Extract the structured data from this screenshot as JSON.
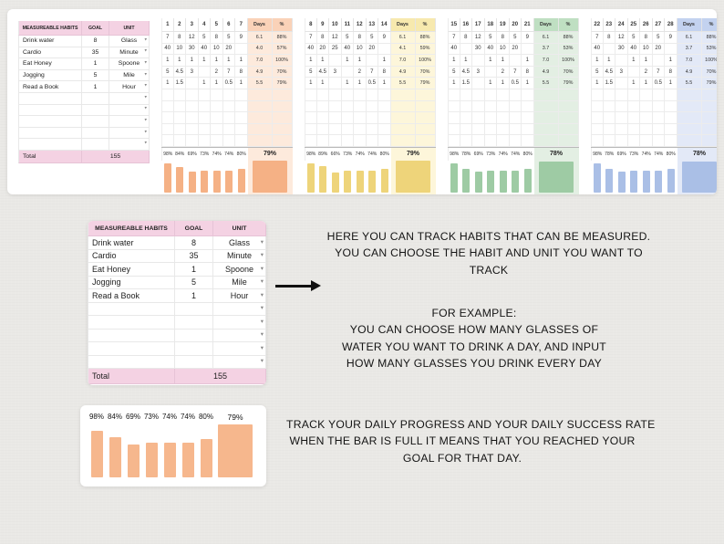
{
  "page": {
    "background": "#eae9e6"
  },
  "habits_table": {
    "headers": [
      "MEASUREABLE HABITS",
      "GOAL",
      "UNIT"
    ],
    "rows": [
      {
        "name": "Drink water",
        "goal": "8",
        "unit": "Glass"
      },
      {
        "name": "Cardio",
        "goal": "35",
        "unit": "Minute"
      },
      {
        "name": "Eat Honey",
        "goal": "1",
        "unit": "Spoone"
      },
      {
        "name": "Jogging",
        "goal": "5",
        "unit": "Mile"
      },
      {
        "name": "Read a Book",
        "goal": "1",
        "unit": "Hour"
      }
    ],
    "empty_row_count": 5,
    "dropdown_caret": "▾",
    "total_label": "Total",
    "total_value": "155",
    "header_color": "#f4d2e3"
  },
  "weeks": [
    {
      "day_labels": [
        "1",
        "2",
        "3",
        "4",
        "5",
        "6",
        "7"
      ],
      "days_header": "Days",
      "pct_header": "%",
      "rows": [
        [
          "7",
          "8",
          "12",
          "5",
          "8",
          "5",
          "9",
          "6.1",
          "88%"
        ],
        [
          "40",
          "10",
          "30",
          "40",
          "10",
          "20",
          "",
          "4.0",
          "57%"
        ],
        [
          "1",
          "1",
          "1",
          "1",
          "1",
          "1",
          "1",
          "7.0",
          "100%"
        ],
        [
          "5",
          "4.5",
          "3",
          "",
          "2",
          "7",
          "8",
          "4.9",
          "70%"
        ],
        [
          "1",
          "1.5",
          "",
          "1",
          "1",
          "0.5",
          "1",
          "5.5",
          "79%"
        ]
      ],
      "empty_row_count": 5,
      "day_pcts": [
        "98%",
        "84%",
        "69%",
        "73%",
        "74%",
        "74%",
        "80%"
      ],
      "week_pct": "79%",
      "bar_values": [
        98,
        84,
        69,
        73,
        74,
        74,
        80
      ],
      "week_bar_value": 79,
      "tint": "#fdeadc",
      "accent": "#fad2b8",
      "bar_color": "#f5b185"
    },
    {
      "day_labels": [
        "8",
        "9",
        "10",
        "11",
        "12",
        "13",
        "14"
      ],
      "days_header": "Days",
      "pct_header": "%",
      "rows": [
        [
          "7",
          "8",
          "12",
          "5",
          "8",
          "5",
          "9",
          "6.1",
          "88%"
        ],
        [
          "40",
          "20",
          "25",
          "40",
          "10",
          "20",
          "",
          "4.1",
          "59%"
        ],
        [
          "1",
          "1",
          "",
          "1",
          "1",
          "",
          "1",
          "7.0",
          "100%"
        ],
        [
          "5",
          "4.5",
          "3",
          "",
          "2",
          "7",
          "8",
          "4.9",
          "70%"
        ],
        [
          "1",
          "1",
          "",
          "1",
          "1",
          "0.5",
          "1",
          "5.5",
          "79%"
        ]
      ],
      "empty_row_count": 5,
      "day_pcts": [
        "98%",
        "89%",
        "66%",
        "73%",
        "74%",
        "74%",
        "80%"
      ],
      "week_pct": "79%",
      "bar_values": [
        98,
        89,
        66,
        73,
        74,
        74,
        80
      ],
      "week_bar_value": 79,
      "tint": "#fdf6da",
      "accent": "#f7e9ae",
      "bar_color": "#eed47a"
    },
    {
      "day_labels": [
        "15",
        "16",
        "17",
        "18",
        "19",
        "20",
        "21"
      ],
      "days_header": "Days",
      "pct_header": "%",
      "rows": [
        [
          "7",
          "8",
          "12",
          "5",
          "8",
          "5",
          "9",
          "6.1",
          "88%"
        ],
        [
          "40",
          "",
          "30",
          "40",
          "10",
          "20",
          "",
          "3.7",
          "53%"
        ],
        [
          "1",
          "1",
          "",
          "1",
          "1",
          "",
          "1",
          "7.0",
          "100%"
        ],
        [
          "5",
          "4.5",
          "3",
          "",
          "2",
          "7",
          "8",
          "4.9",
          "70%"
        ],
        [
          "1",
          "1.5",
          "",
          "1",
          "1",
          "0.5",
          "1",
          "5.5",
          "79%"
        ]
      ],
      "empty_row_count": 5,
      "day_pcts": [
        "98%",
        "78%",
        "69%",
        "73%",
        "74%",
        "74%",
        "80%"
      ],
      "week_pct": "78%",
      "bar_values": [
        98,
        78,
        69,
        73,
        74,
        74,
        80
      ],
      "week_bar_value": 78,
      "tint": "#e3efe3",
      "accent": "#bfdfc2",
      "bar_color": "#9ecba4"
    },
    {
      "day_labels": [
        "22",
        "23",
        "24",
        "25",
        "26",
        "27",
        "28"
      ],
      "days_header": "Days",
      "pct_header": "%",
      "rows": [
        [
          "7",
          "8",
          "12",
          "5",
          "8",
          "5",
          "9",
          "6.1",
          "88%"
        ],
        [
          "40",
          "",
          "30",
          "40",
          "10",
          "20",
          "",
          "3.7",
          "53%"
        ],
        [
          "1",
          "1",
          "",
          "1",
          "1",
          "",
          "1",
          "7.0",
          "100%"
        ],
        [
          "5",
          "4.5",
          "3",
          "",
          "2",
          "7",
          "8",
          "4.9",
          "70%"
        ],
        [
          "1",
          "1.5",
          "",
          "1",
          "1",
          "0.5",
          "1",
          "5.5",
          "79%"
        ]
      ],
      "empty_row_count": 5,
      "day_pcts": [
        "98%",
        "78%",
        "69%",
        "73%",
        "74%",
        "74%",
        "80%"
      ],
      "week_pct": "78%",
      "bar_values": [
        98,
        78,
        69,
        73,
        74,
        74,
        80
      ],
      "week_bar_value": 78,
      "tint": "#e3e9f7",
      "accent": "#c3d2ef",
      "bar_color": "#aabfe6"
    }
  ],
  "annotations": {
    "measure_text": [
      "HERE YOU CAN TRACK HABITS THAT CAN BE MEASURED.",
      "YOU CAN CHOOSE THE HABIT AND UNIT YOU WANT TO",
      "TRACK"
    ],
    "example_text": [
      "FOR EXAMPLE:",
      "YOU CAN CHOOSE HOW MANY GLASSES OF",
      "WATER YOU WANT TO DRINK A DAY, AND INPUT",
      "HOW MANY GLASSES YOU DRINK EVERY DAY"
    ],
    "progress_text": [
      "TRACK YOUR DAILY PROGRESS AND  YOUR DAILY SUCCESS RATE",
      "WHEN THE BAR IS FULL IT MEANS THAT YOU REACHED YOUR",
      "GOAL FOR THAT DAY."
    ]
  },
  "bottom_chart": {
    "type": "bar",
    "pcts": [
      "98%",
      "84%",
      "69%",
      "73%",
      "74%",
      "74%",
      "80%"
    ],
    "total_pct": "79%",
    "values": [
      98,
      84,
      69,
      73,
      74,
      74,
      80
    ],
    "total_value": 79,
    "bar_color": "#f6b78d"
  }
}
